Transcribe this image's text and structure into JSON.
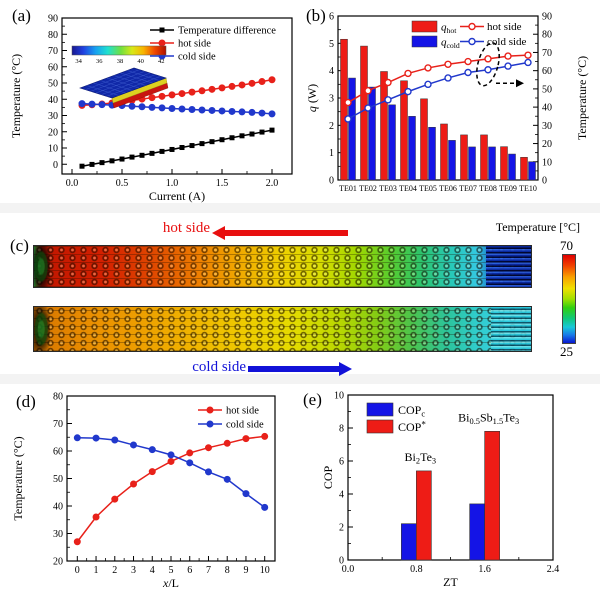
{
  "panel_labels": {
    "a": "(a)",
    "b": "(b)",
    "c": "(c)",
    "d": "(d)",
    "e": "(e)"
  },
  "colors": {
    "bar_red": "#ee1c16",
    "bar_blue": "#1414e6",
    "line_red": "#e8211a",
    "line_blue": "#2138cc",
    "black": "#000000"
  },
  "chart_data": [
    {
      "id": "a",
      "type": "line",
      "xlabel": "Current (A)",
      "ylabel": "Temperature (°C)",
      "xlim": [
        -0.1,
        2.2
      ],
      "ylim": [
        -6,
        90
      ],
      "xticks": [
        0,
        0.5,
        1,
        1.5,
        2
      ],
      "xtick_labels": [
        "0.0",
        "0.5",
        "1.0",
        "1.5",
        "2.0"
      ],
      "yticks": [
        0,
        10,
        20,
        30,
        40,
        50,
        60,
        70,
        80,
        90
      ],
      "x": [
        0.1,
        0.2,
        0.3,
        0.4,
        0.5,
        0.6,
        0.7,
        0.8,
        0.9,
        1.0,
        1.1,
        1.2,
        1.3,
        1.4,
        1.5,
        1.6,
        1.7,
        1.8,
        1.9,
        2.0
      ],
      "series": [
        {
          "name": "Temperature difference",
          "marker": "square",
          "color": "#000000",
          "values": [
            -1.2,
            -0.1,
            1.0,
            2.1,
            3.2,
            4.4,
            5.5,
            6.7,
            7.9,
            9.1,
            10.3,
            11.5,
            12.7,
            13.9,
            15.1,
            16.3,
            17.5,
            18.6,
            19.8,
            21.0
          ]
        },
        {
          "name": "hot side",
          "marker": "circle",
          "color": "#e8211a",
          "values": [
            36.2,
            36.6,
            37.1,
            37.7,
            38.5,
            39.3,
            40.1,
            41.0,
            41.8,
            42.7,
            43.5,
            44.4,
            45.2,
            46.1,
            47.0,
            47.9,
            48.8,
            49.8,
            50.9,
            52.0
          ]
        },
        {
          "name": "cold side",
          "marker": "circle",
          "color": "#2138cc",
          "values": [
            37.3,
            37.0,
            36.7,
            36.4,
            36.1,
            35.7,
            35.4,
            35.0,
            34.7,
            34.3,
            34.0,
            33.7,
            33.4,
            33.1,
            32.8,
            32.5,
            32.2,
            31.9,
            31.5,
            31.0
          ]
        }
      ],
      "inset_colorbar": {
        "tick_labels": [
          "34",
          "36",
          "38",
          "40",
          "42"
        ]
      }
    },
    {
      "id": "b",
      "type": "bar-line",
      "categories": [
        "TE01",
        "TE02",
        "TE03",
        "TE04",
        "TE05",
        "TE06",
        "TE07",
        "TE08",
        "TE09",
        "TE10"
      ],
      "ylabel_left_parts": [
        [
          "q",
          "i"
        ],
        [
          " (W)",
          ""
        ]
      ],
      "ylabel_right": "Temperature (°C)",
      "ylim_left": [
        0,
        6
      ],
      "yticks_left": [
        0,
        1,
        2,
        3,
        4,
        5,
        6
      ],
      "ylim_right": [
        0,
        90
      ],
      "yticks_right": [
        0,
        10,
        20,
        30,
        40,
        50,
        60,
        70,
        80,
        90
      ],
      "bar_series": [
        {
          "name_parts": [
            [
              "q",
              "i"
            ],
            [
              "hot",
              "sub"
            ]
          ],
          "color": "#ee1c16",
          "values": [
            5.15,
            4.9,
            3.97,
            3.63,
            2.97,
            2.05,
            1.65,
            1.65,
            1.22,
            0.83
          ]
        },
        {
          "name_parts": [
            [
              "q",
              "i"
            ],
            [
              "cold",
              "sub"
            ]
          ],
          "color": "#1414e6",
          "values": [
            3.73,
            3.4,
            2.75,
            2.33,
            1.93,
            1.45,
            1.21,
            1.21,
            0.95,
            0.67
          ]
        }
      ],
      "line_series": [
        {
          "name": "hot side",
          "color": "#e8211a",
          "values": [
            42.5,
            49,
            53.5,
            58.5,
            61.5,
            63.5,
            65,
            66.5,
            68,
            68.5
          ]
        },
        {
          "name": "cold side",
          "color": "#2138cc",
          "values": [
            33.5,
            39.5,
            44,
            48.5,
            52.5,
            56,
            59,
            60.5,
            62.5,
            64.5
          ]
        }
      ],
      "highlight": {
        "category_index": 7,
        "style": "dashed-ellipse-with-right-arrow"
      }
    },
    {
      "id": "c",
      "type": "heatmap",
      "hot_label": "hot side",
      "cold_label": "cold side",
      "colorbar_title": "Temperature [°C]",
      "colorbar_max": "70",
      "colorbar_min": "25"
    },
    {
      "id": "d",
      "type": "line",
      "xlabel_parts": [
        [
          "x",
          "i"
        ],
        [
          "/L",
          ""
        ]
      ],
      "ylabel": "Temperature (°C)",
      "xlim": [
        -0.55,
        10.55
      ],
      "ylim": [
        20,
        80
      ],
      "xticks": [
        0,
        1,
        2,
        3,
        4,
        5,
        6,
        7,
        8,
        9,
        10
      ],
      "xtick_labels": [
        "0",
        "1",
        "2",
        "3",
        "4",
        "5",
        "6",
        "7",
        "8",
        "9",
        "10"
      ],
      "yticks": [
        20,
        30,
        40,
        50,
        60,
        70,
        80
      ],
      "x": [
        0,
        1,
        2,
        3,
        4,
        5,
        6,
        7,
        8,
        9,
        10
      ],
      "series": [
        {
          "name": "hot side",
          "marker": "circle",
          "color": "#e8211a",
          "values": [
            27,
            36,
            42.5,
            48,
            52.5,
            56.2,
            59.3,
            61.2,
            62.8,
            64.5,
            65.3
          ]
        },
        {
          "name": "cold side",
          "marker": "circle",
          "color": "#2138cc",
          "values": [
            64.8,
            64.7,
            64.0,
            62.2,
            60.5,
            58.6,
            55.7,
            52.4,
            49.7,
            44.5,
            39.5
          ]
        }
      ]
    },
    {
      "id": "e",
      "type": "bar",
      "xlabel": "ZT",
      "ylabel": "COP",
      "xlim": [
        0,
        2.4
      ],
      "ylim": [
        0,
        10
      ],
      "xticks": [
        0,
        0.8,
        1.6,
        2.4
      ],
      "xtick_labels": [
        "0.0",
        "0.8",
        "1.6",
        "2.4"
      ],
      "yticks": [
        0,
        2,
        4,
        6,
        8,
        10
      ],
      "legend": [
        {
          "name_parts": [
            [
              "COP",
              ""
            ],
            [
              "c",
              "sub"
            ]
          ],
          "color": "#1414e6"
        },
        {
          "name_parts": [
            [
              "COP",
              ""
            ],
            [
              "*",
              "sup"
            ]
          ],
          "color": "#ee1c16"
        }
      ],
      "groups": [
        {
          "x": 0.8,
          "annotation_parts": [
            [
              "Bi",
              ""
            ],
            [
              "2",
              "sub"
            ],
            [
              "Te",
              ""
            ],
            [
              "3",
              "sub"
            ]
          ],
          "values": [
            2.2,
            5.4
          ]
        },
        {
          "x": 1.6,
          "annotation_parts": [
            [
              "Bi",
              ""
            ],
            [
              "0.5",
              "sub"
            ],
            [
              "Sb",
              ""
            ],
            [
              "1.5",
              "sub"
            ],
            [
              "Te",
              ""
            ],
            [
              "3",
              "sub"
            ]
          ],
          "values": [
            3.4,
            7.8
          ]
        }
      ]
    }
  ]
}
